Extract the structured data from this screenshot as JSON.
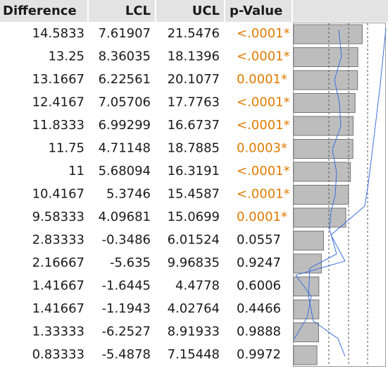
{
  "table": {
    "columns": [
      "Difference",
      "LCL",
      "UCL",
      "p-Value"
    ],
    "rows": [
      [
        14.5833,
        7.61907,
        21.5476,
        "<.0001*"
      ],
      [
        13.25,
        8.36035,
        18.1396,
        "<.0001*"
      ],
      [
        13.1667,
        6.22561,
        20.1077,
        "0.0001*"
      ],
      [
        12.4167,
        7.05706,
        17.7763,
        "<.0001*"
      ],
      [
        11.8333,
        6.99299,
        16.6737,
        "<.0001*"
      ],
      [
        11.75,
        4.71148,
        18.7885,
        "0.0003*"
      ],
      [
        11,
        5.68094,
        16.3191,
        "<.0001*"
      ],
      [
        10.4167,
        5.3746,
        15.4587,
        "<.0001*"
      ],
      [
        9.58333,
        4.09681,
        15.0699,
        "0.0001*"
      ],
      [
        2.83333,
        -0.3486,
        6.01524,
        "0.0557"
      ],
      [
        2.16667,
        -5.635,
        9.96835,
        "0.9247"
      ],
      [
        1.41667,
        -1.6445,
        4.4778,
        "0.6006"
      ],
      [
        1.41667,
        -1.1943,
        4.02764,
        "0.4466"
      ],
      [
        1.33333,
        -6.2527,
        8.91933,
        "0.9888"
      ],
      [
        0.83333,
        -5.4878,
        7.15448,
        "0.9972"
      ]
    ]
  }
}
